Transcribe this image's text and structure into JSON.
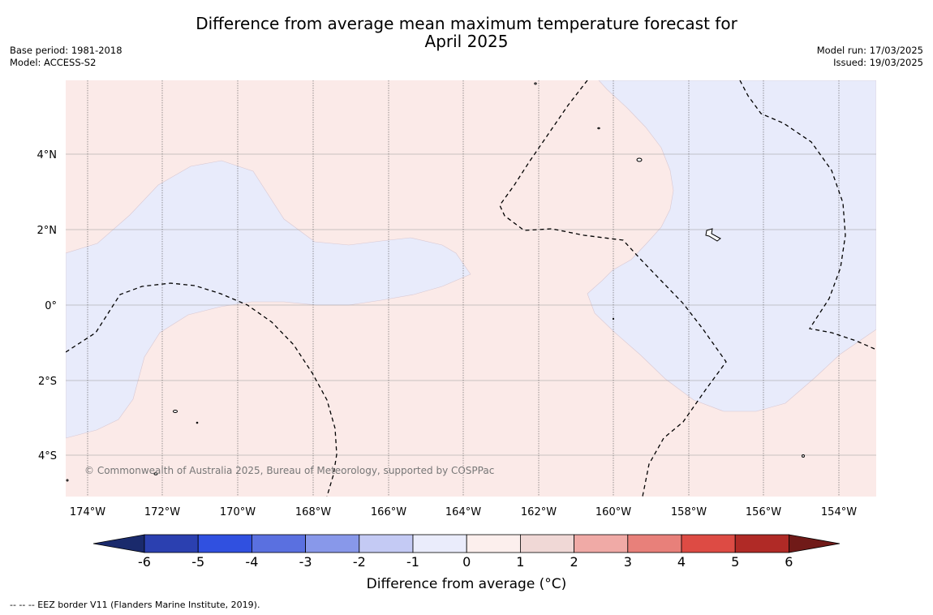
{
  "title_line1": "Difference from average mean maximum temperature forecast for",
  "title_line2": "April 2025",
  "base_period": "Base period: 1981-2018",
  "model": "Model: ACCESS-S2",
  "model_run": "Model run: 17/03/2025",
  "issued": "Issued: 19/03/2025",
  "copyright": "© Commonwealth of Australia 2025, Bureau of Meteorology, supported by COSPPac",
  "lat_labels": [
    "4°N",
    "2°N",
    "0°",
    "2°S",
    "4°S"
  ],
  "lon_labels": [
    "174°W",
    "172°W",
    "170°W",
    "168°W",
    "166°W",
    "164°W",
    "162°W",
    "160°W",
    "158°W",
    "156°W",
    "154°W"
  ],
  "colorbar": {
    "title": "Difference from average (°C)",
    "tick_labels": [
      "-6",
      "-5",
      "-4",
      "-3",
      "-2",
      "-1",
      "0",
      "1",
      "2",
      "3",
      "4",
      "5",
      "6"
    ],
    "colors": [
      "#1a2a6c",
      "#2b40b0",
      "#3050e0",
      "#5a70e0",
      "#8898ea",
      "#c4caf4",
      "#eaecfb",
      "#fcefed",
      "#f0d8d6",
      "#f0aaa6",
      "#e8807a",
      "#dd4b44",
      "#b02a26",
      "#701a18"
    ]
  },
  "map_fill_colors": {
    "pink": "#fbeae8",
    "blue": "#e8ebfb"
  },
  "footnote": "--  --  -- EEZ border V11 (Flanders Marine Institute, 2019)."
}
